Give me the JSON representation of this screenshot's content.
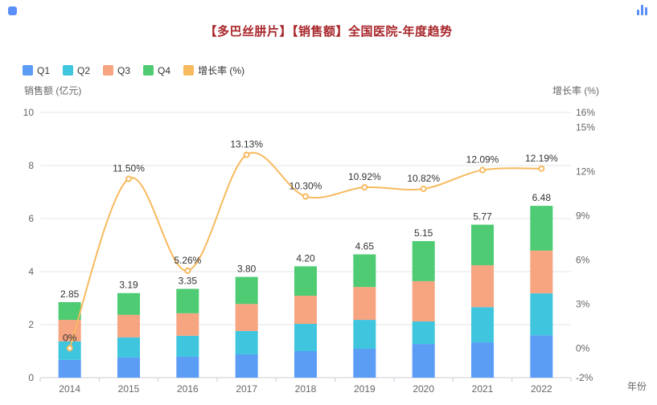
{
  "page": {
    "title": "【多巴丝肼片】【销售额】全国医院-年度趋势",
    "title_color": "#A8262B",
    "watermark_color": "#5B8FF9"
  },
  "chart_data": {
    "type": "bar+line",
    "title": "【多巴丝肼片】【销售额】全国医院-年度趋势",
    "categories": [
      "2014",
      "2015",
      "2016",
      "2017",
      "2018",
      "2019",
      "2020",
      "2021",
      "2022"
    ],
    "series": [
      {
        "name": "Q1",
        "type": "bar",
        "stack": "total",
        "color": "#5B9CF5",
        "values": [
          0.67,
          0.76,
          0.79,
          0.88,
          1.0,
          1.09,
          1.27,
          1.33,
          1.6
        ]
      },
      {
        "name": "Q2",
        "type": "bar",
        "stack": "total",
        "color": "#3FC6DE",
        "values": [
          0.7,
          0.76,
          0.79,
          0.88,
          1.03,
          1.09,
          0.85,
          1.33,
          1.58
        ]
      },
      {
        "name": "Q3",
        "type": "bar",
        "stack": "total",
        "color": "#F7A481",
        "values": [
          0.81,
          0.85,
          0.85,
          1.02,
          1.06,
          1.24,
          1.52,
          1.58,
          1.61
        ]
      },
      {
        "name": "Q4",
        "type": "bar",
        "stack": "total",
        "color": "#4ECB73",
        "values": [
          0.67,
          0.82,
          0.92,
          1.02,
          1.11,
          1.23,
          1.51,
          1.53,
          1.69
        ]
      },
      {
        "name": "增长率 (%)",
        "type": "line",
        "axis": "right",
        "color": "#F7BA5F",
        "values": [
          0,
          11.5,
          5.26,
          13.13,
          10.3,
          10.92,
          10.82,
          12.09,
          12.19
        ],
        "labels": [
          "0%",
          "11.50%",
          "5.26%",
          "13.13%",
          "10.30%",
          "10.92%",
          "10.82%",
          "12.09%",
          "12.19%"
        ]
      }
    ],
    "totals": [
      "2.85",
      "3.19",
      "3.35",
      "3.80",
      "4.20",
      "4.65",
      "5.15",
      "5.77",
      "6.48"
    ],
    "left_axis": {
      "title": "销售额 (亿元)",
      "min": 0,
      "max": 10,
      "tick_values": [
        0,
        2,
        4,
        6,
        8,
        10
      ],
      "tick_labels": [
        "0",
        "2",
        "4",
        "6",
        "8",
        "10"
      ]
    },
    "right_axis": {
      "title": "增长率 (%)",
      "min": -2,
      "max": 16,
      "tick_values": [
        16,
        15,
        12,
        9,
        6,
        3,
        0,
        -2
      ],
      "tick_labels": [
        "16%",
        "15%",
        "12%",
        "9%",
        "6%",
        "3%",
        "0%",
        "-2%"
      ]
    },
    "x_axis": {
      "title": "年份"
    },
    "grid": true,
    "legend_position": "top-left",
    "colors": {
      "grid_line": "#E6E6E6",
      "axis_line": "#C9CDD4",
      "tick_text": "#666666",
      "data_label": "#333333"
    }
  }
}
